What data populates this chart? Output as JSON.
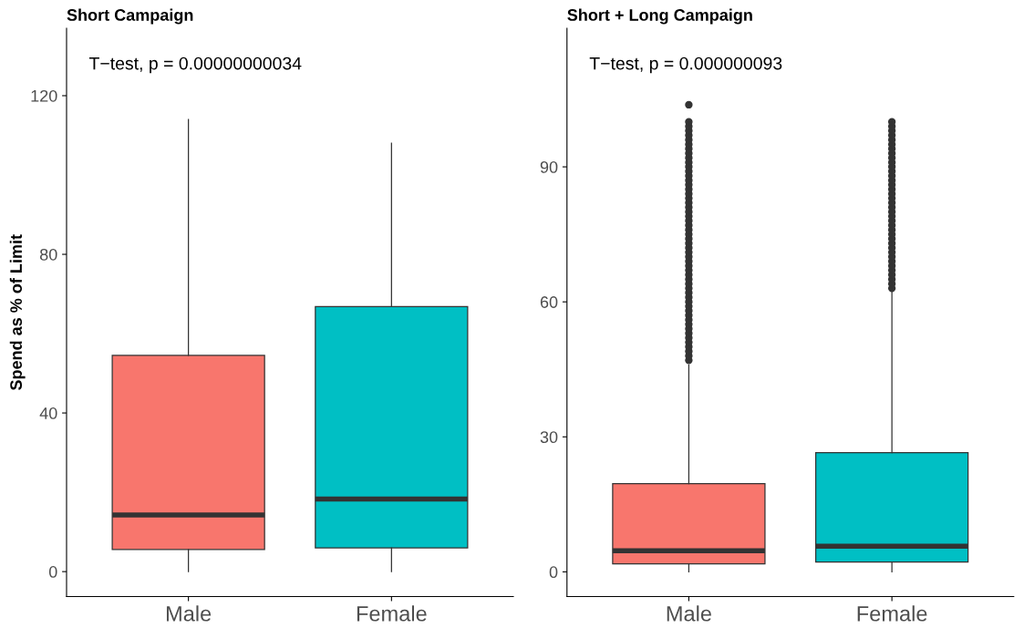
{
  "chart_data": [
    {
      "type": "box",
      "title": "Short Campaign",
      "ylabel": "Spend as % of Limit",
      "categories": [
        "Male",
        "Female"
      ],
      "colors": [
        "#f8766d",
        "#00bfc4"
      ],
      "boxes": [
        {
          "low": 0,
          "q1": 5.6,
          "median": 14.3,
          "q3": 54.5,
          "high": 114
        },
        {
          "low": 0,
          "q1": 6.0,
          "median": 18.3,
          "q3": 66.8,
          "high": 108
        }
      ],
      "ylim": [
        -6.3,
        137
      ],
      "yticks": [
        0,
        40,
        80,
        120
      ],
      "grid": false,
      "legend": false,
      "annotations": [
        "T−test, p = 0.00000000034"
      ]
    },
    {
      "type": "box",
      "title": "Short + Long Campaign",
      "categories": [
        "Male",
        "Female"
      ],
      "colors": [
        "#f8766d",
        "#00bfc4"
      ],
      "boxes": [
        {
          "low": 0,
          "q1": 1.8,
          "median": 4.7,
          "q3": 19.6,
          "high": 46,
          "outliers": [
            47,
            48,
            49,
            50,
            51,
            52,
            53,
            54,
            55,
            56,
            57,
            58,
            59,
            60,
            61,
            62,
            63,
            64,
            65,
            66,
            67,
            68,
            69,
            70,
            71,
            72,
            73,
            74,
            75,
            76,
            77,
            78,
            79,
            80,
            81,
            82,
            83,
            84,
            85,
            86,
            87,
            88,
            89,
            90,
            91,
            92,
            93,
            94,
            95,
            96,
            97,
            98,
            99,
            100,
            103.8
          ]
        },
        {
          "low": 0,
          "q1": 2.2,
          "median": 5.7,
          "q3": 26.5,
          "high": 62.5,
          "outliers": [
            63,
            64,
            65,
            66,
            67,
            68,
            69,
            70,
            71,
            72,
            73,
            74,
            75,
            76,
            77,
            78,
            79,
            80,
            81,
            82,
            83,
            84,
            85,
            86,
            87,
            88,
            89,
            90,
            91,
            92,
            93,
            94,
            95,
            96,
            97,
            98,
            99,
            100
          ]
        }
      ],
      "ylim": [
        -5.5,
        120.8
      ],
      "yticks": [
        0,
        30,
        60,
        90
      ],
      "grid": false,
      "legend": false,
      "annotations": [
        "T−test, p = 0.000000093"
      ]
    }
  ]
}
